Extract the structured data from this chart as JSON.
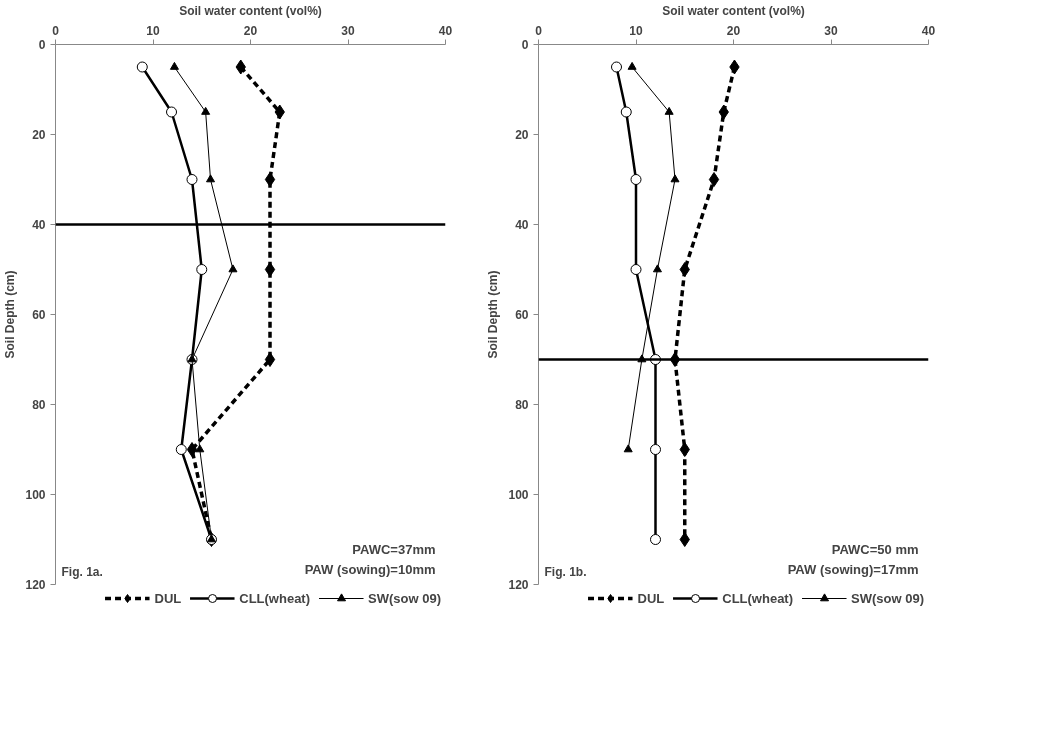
{
  "chart_data": [
    {
      "type": "line",
      "xlabel": "Soil water content (vol%)",
      "ylabel": "Soil Depth (cm)",
      "xlim": [
        0,
        40
      ],
      "xticks": [
        0,
        10,
        20,
        30,
        40
      ],
      "ylim": [
        120,
        0
      ],
      "yticks": [
        0,
        20,
        40,
        60,
        80,
        100,
        120
      ],
      "grid": false,
      "legend": "bottom",
      "series": [
        {
          "name": "DUL",
          "color": "#000000",
          "marker": "diamond",
          "line_style": "dashed",
          "x": [
            19.0,
            23.0,
            22.0,
            22.0,
            22.0,
            14.0,
            16.0
          ],
          "values": [
            5,
            15,
            30,
            50,
            70,
            90,
            110
          ]
        },
        {
          "name": "CLL(wheat)",
          "color": "#000000",
          "marker": "circle",
          "line_style": "solid",
          "x": [
            8.9,
            11.9,
            14.0,
            15.0,
            14.0,
            12.9,
            16.0
          ],
          "values": [
            5,
            15,
            30,
            50,
            70,
            90,
            110
          ]
        },
        {
          "name": "SW(sow 09)",
          "color": "#000000",
          "marker": "triangle",
          "line_style": "solid",
          "x": [
            12.2,
            15.4,
            15.9,
            18.2,
            14.0,
            14.8,
            16.0
          ],
          "values": [
            5,
            15,
            30,
            50,
            70,
            90,
            110
          ]
        }
      ],
      "ref_lines": [
        {
          "axis": "y",
          "value": 40,
          "color": "#000000"
        }
      ],
      "annotations": [
        "PAWC=37mm",
        "PAW (sowing)=10mm",
        "Fig. 1a."
      ]
    },
    {
      "type": "line",
      "xlabel": "Soil water content (vol%)",
      "ylabel": "Soil Depth (cm)",
      "xlim": [
        0,
        40
      ],
      "xticks": [
        0,
        10,
        20,
        30,
        40
      ],
      "ylim": [
        120,
        0
      ],
      "yticks": [
        0,
        20,
        40,
        60,
        80,
        100,
        120
      ],
      "grid": false,
      "legend": "bottom",
      "series": [
        {
          "name": "DUL",
          "color": "#000000",
          "marker": "diamond",
          "line_style": "dashed",
          "x": [
            20.1,
            19.0,
            18.0,
            15.0,
            14.0,
            15.0,
            15.0
          ],
          "values": [
            5,
            15,
            30,
            50,
            70,
            90,
            110
          ]
        },
        {
          "name": "CLL(wheat)",
          "color": "#000000",
          "marker": "circle",
          "line_style": "solid",
          "x": [
            8.0,
            9.0,
            10.0,
            10.0,
            12.0,
            12.0,
            12.0
          ],
          "values": [
            5,
            15,
            30,
            50,
            70,
            90,
            110
          ]
        },
        {
          "name": "SW(sow 09)",
          "color": "#000000",
          "marker": "triangle",
          "line_style": "solid",
          "x": [
            9.6,
            13.4,
            14.0,
            12.2,
            10.6,
            9.2
          ],
          "values": [
            5,
            15,
            30,
            50,
            70,
            90
          ]
        }
      ],
      "ref_lines": [
        {
          "axis": "y",
          "value": 70,
          "color": "#000000"
        }
      ],
      "annotations": [
        "PAWC=50 mm",
        "PAW (sowing)=17mm",
        "Fig. 1b."
      ]
    }
  ]
}
